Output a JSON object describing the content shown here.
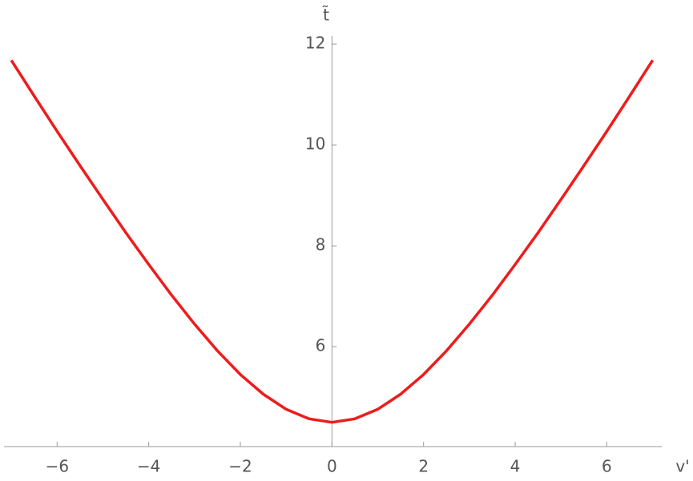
{
  "chart_data": {
    "type": "line",
    "x_label": "v'",
    "y_label": "t̃",
    "x": [
      -7,
      -6.5,
      -6,
      -5.5,
      -5,
      -4.5,
      -4,
      -3.5,
      -3,
      -2.5,
      -2,
      -1.5,
      -1,
      -0.5,
      0,
      0.5,
      1,
      1.5,
      2,
      2.5,
      3,
      3.5,
      4,
      4.5,
      5,
      5.5,
      6,
      6.5,
      7
    ],
    "series": [
      {
        "color": "#ee1c1c",
        "values": [
          11.68,
          10.97,
          10.27,
          9.59,
          8.92,
          8.26,
          7.63,
          7.02,
          6.45,
          5.92,
          5.45,
          5.06,
          4.76,
          4.57,
          4.5,
          4.57,
          4.76,
          5.06,
          5.45,
          5.92,
          6.45,
          7.02,
          7.63,
          8.26,
          8.92,
          9.59,
          10.27,
          10.97,
          11.68
        ]
      }
    ],
    "xlim": [
      -7.16,
      7.2
    ],
    "ylim": [
      4.02,
      12.16
    ],
    "xticks": [
      {
        "value": -6,
        "label": "−6"
      },
      {
        "value": -4,
        "label": "−4"
      },
      {
        "value": -2,
        "label": "−2"
      },
      0,
      2,
      4,
      6
    ],
    "yticks": [
      6,
      8,
      10,
      12
    ]
  }
}
